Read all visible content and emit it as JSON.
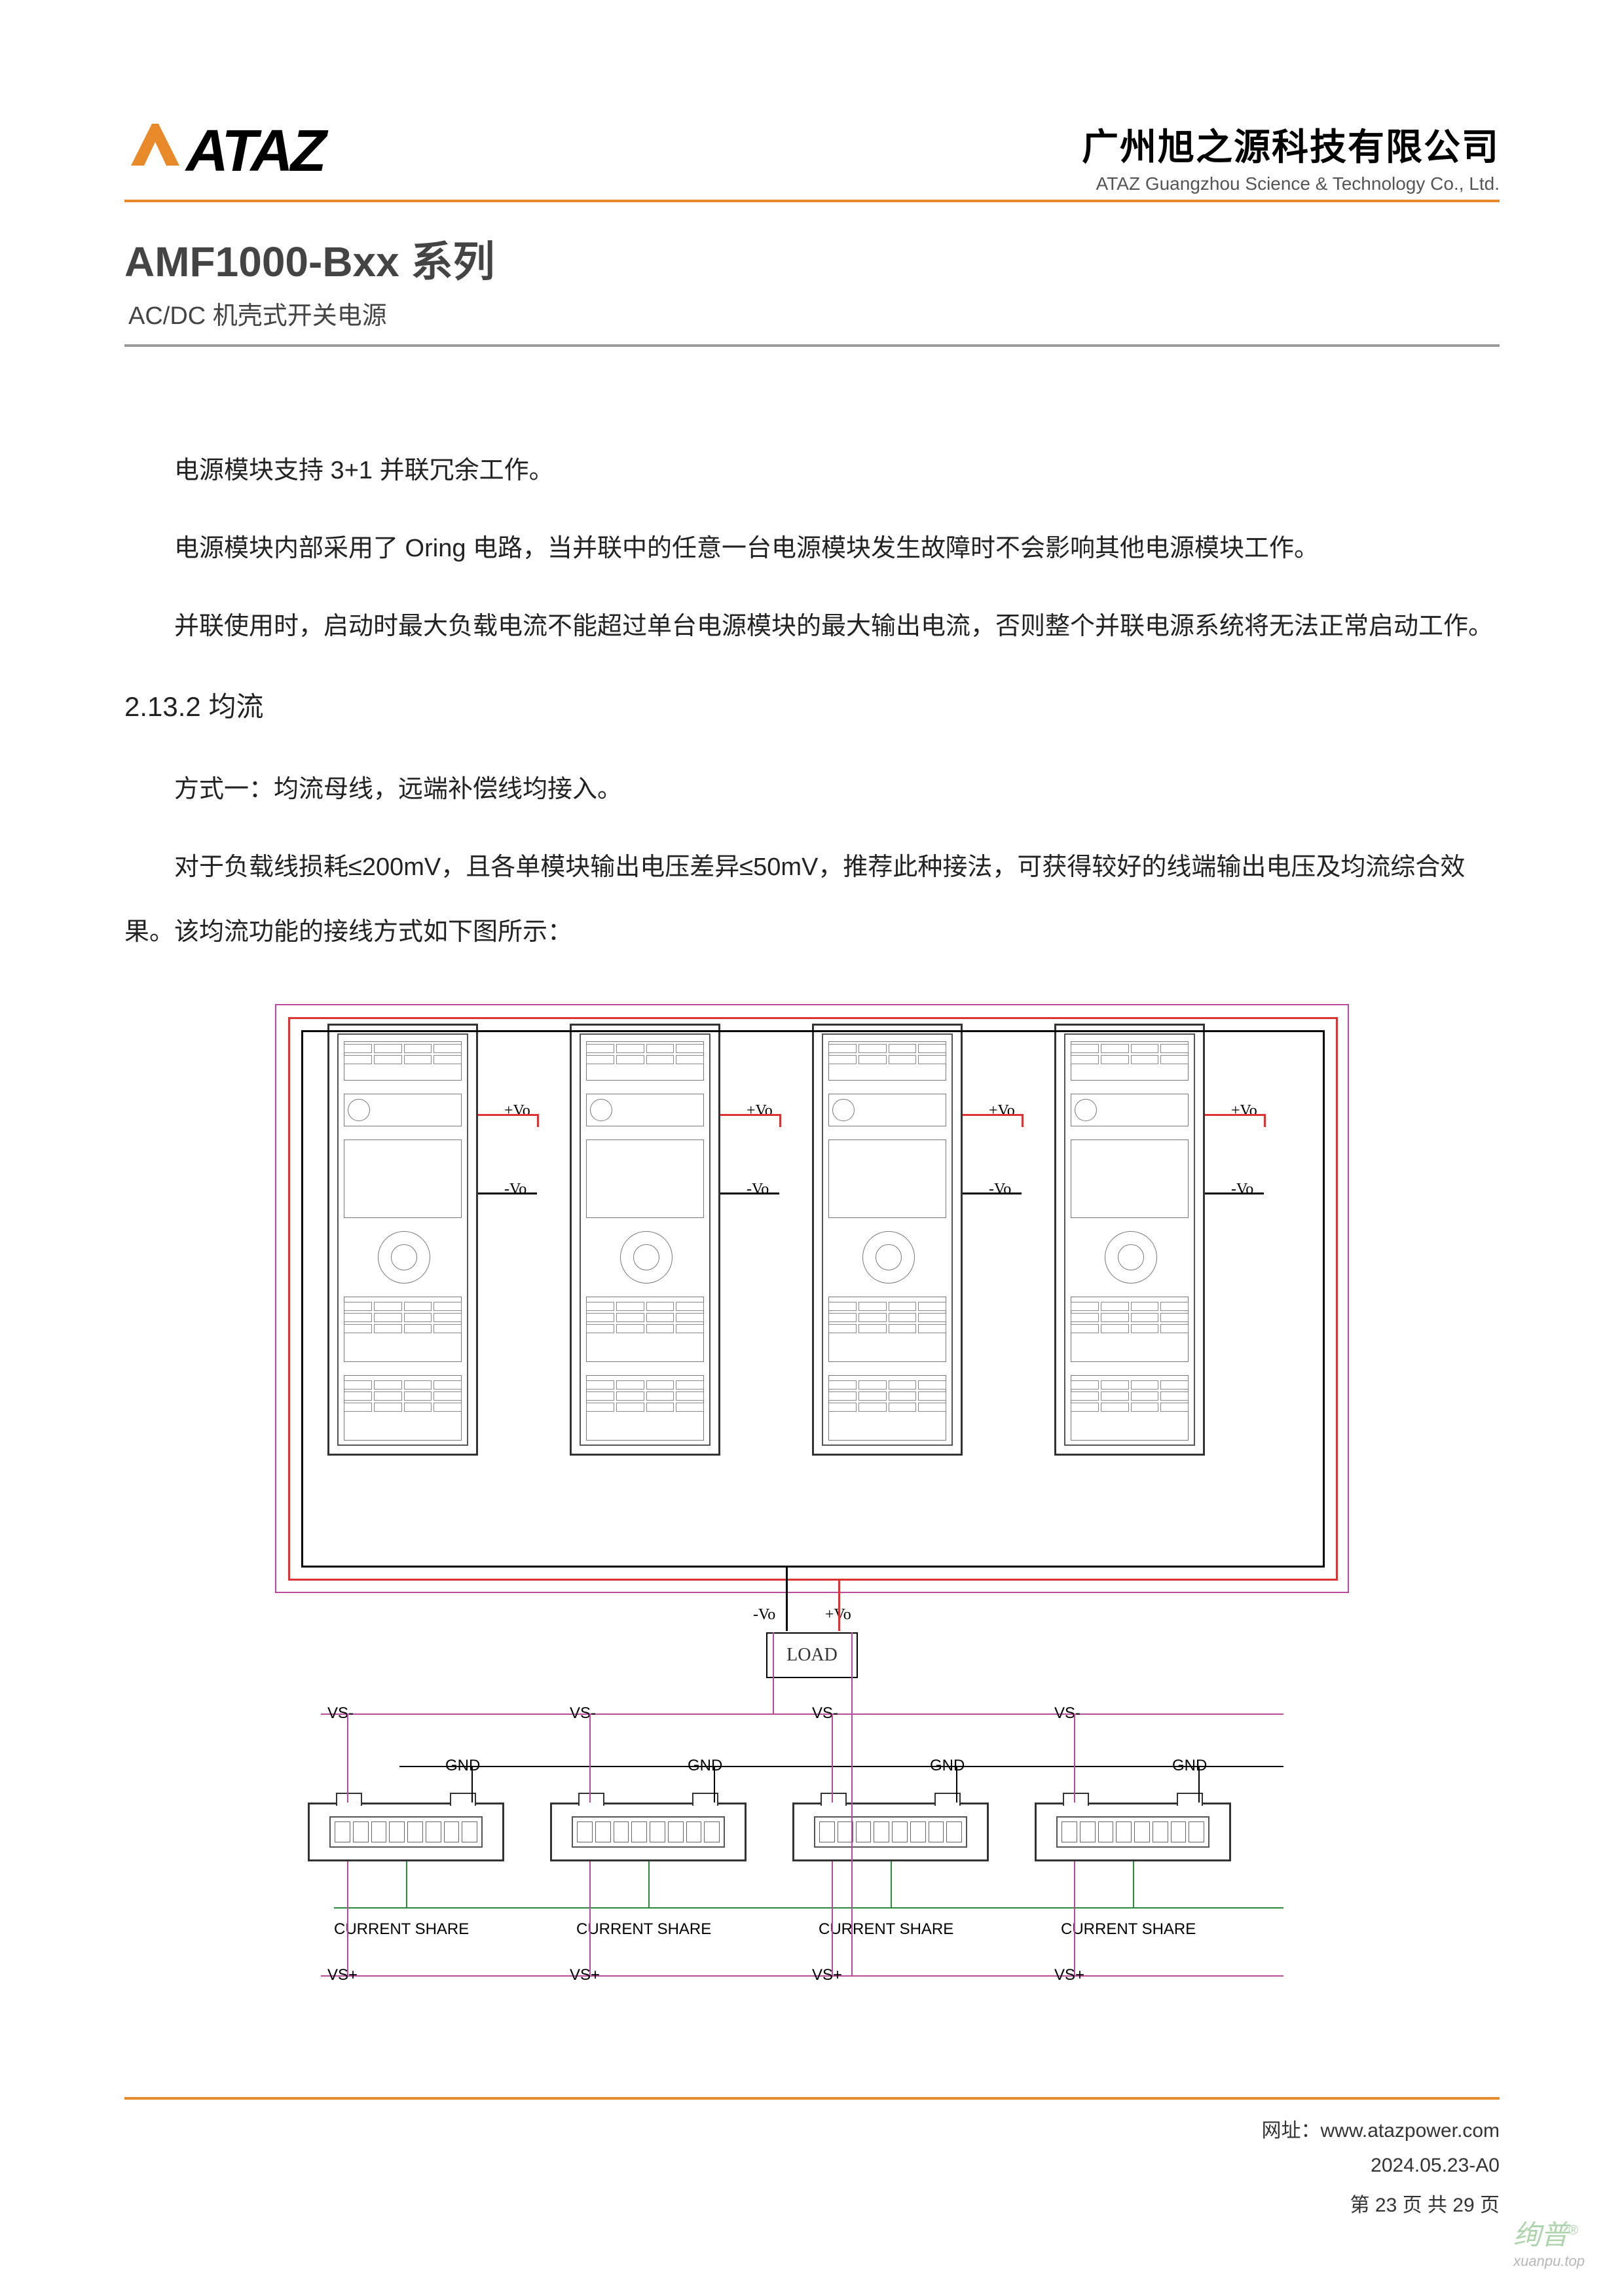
{
  "header": {
    "logo_text": "ATAZ",
    "logo_accent_color": "#e88a2a",
    "company_cn": "广州旭之源科技有限公司",
    "company_en": "ATAZ Guangzhou Science & Technology Co., Ltd."
  },
  "title": {
    "series": "AMF1000-Bxx 系列",
    "subtitle": "AC/DC 机壳式开关电源"
  },
  "paragraphs": {
    "p1": "电源模块支持 3+1 并联冗余工作。",
    "p2": "电源模块内部采用了 Oring 电路，当并联中的任意一台电源模块发生故障时不会影响其他电源模块工作。",
    "p3": "并联使用时，启动时最大负载电流不能超过单台电源模块的最大输出电流，否则整个并联电源系统将无法正常启动工作。"
  },
  "section": {
    "number_title": "2.13.2  均流",
    "method1": "方式一：均流母线，远端补偿线均接入。",
    "desc": "对于负载线损耗≤200mV，且各单模块输出电压差异≤50mV，推荐此种接法，可获得较好的线端输出电压及均流综合效果。该均流功能的接线方式如下图所示："
  },
  "diagram": {
    "module_count": 4,
    "module_x": [
      120,
      490,
      860,
      1230
    ],
    "module_width": 230,
    "vo_plus": "+Vo",
    "vo_minus": "-Vo",
    "load_label": "LOAD",
    "load_vo_minus": "-Vo",
    "load_vo_plus": "+Vo",
    "vs_minus": "VS-",
    "gnd": "GND",
    "current_share": "CURRENT SHARE",
    "vs_plus": "VS+",
    "connector_x": [
      90,
      460,
      830,
      1200
    ],
    "colors": {
      "bus_frame": "#b94a9c",
      "wire_pos": "#d33333",
      "wire_neg": "#000000",
      "wire_sense": "#b94a9c",
      "wire_share": "#2a8a3a"
    }
  },
  "footer": {
    "url_label": "网址：",
    "url": "www.atazpower.com",
    "date_rev": "2024.05.23-A0",
    "page_prefix": "第 ",
    "page_current": "23",
    "page_mid": " 页 共 ",
    "page_total": "29",
    "page_suffix": " 页"
  },
  "watermark": {
    "main": "绚普",
    "sub": "xuanpu.top",
    "reg": "®"
  }
}
